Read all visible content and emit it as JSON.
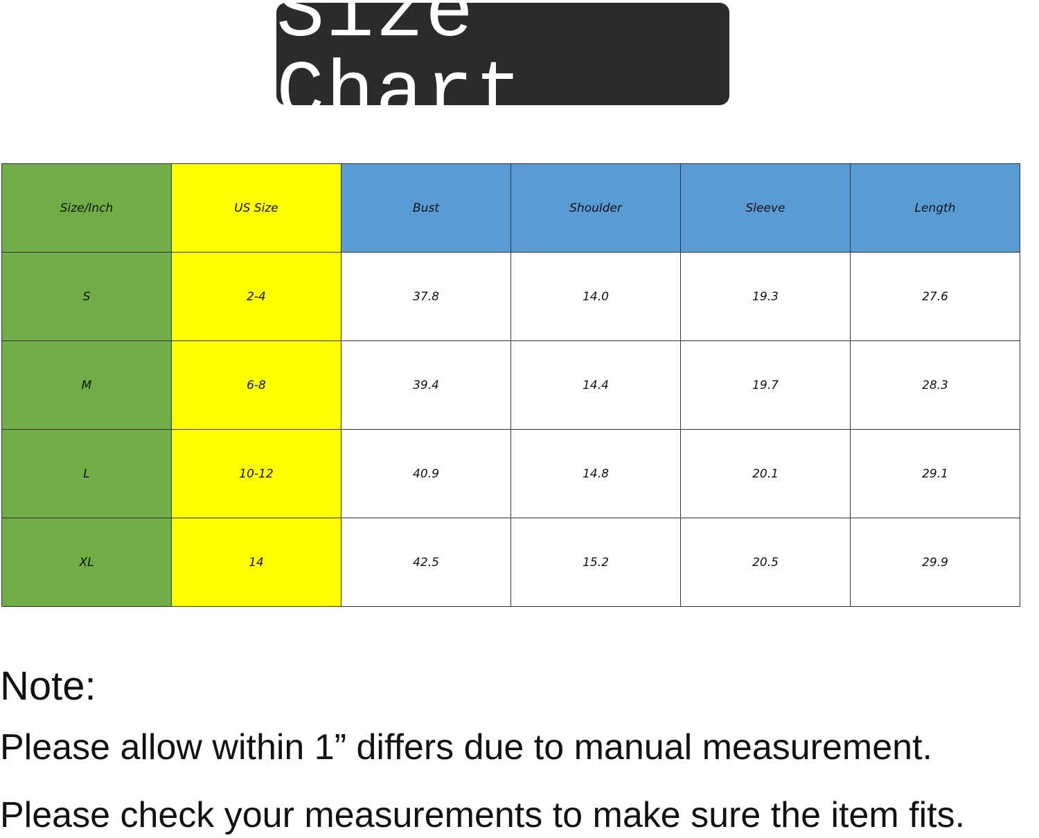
{
  "title": "Size Chart",
  "colors": {
    "size_column": "#70ad47",
    "us_size_column": "#ffff00",
    "measurement_header": "#5b9bd5",
    "title_background": "#2b2b2b"
  },
  "table": {
    "headers": [
      "Size/Inch",
      "US Size",
      "Bust",
      "Shoulder",
      "Sleeve",
      "Length"
    ],
    "rows": [
      [
        "S",
        "2-4",
        "37.8",
        "14.0",
        "19.3",
        "27.6"
      ],
      [
        "M",
        "6-8",
        "39.4",
        "14.4",
        "19.7",
        "28.3"
      ],
      [
        "L",
        "10-12",
        "40.9",
        "14.8",
        "20.1",
        "29.1"
      ],
      [
        "XL",
        "14",
        "42.5",
        "15.2",
        "20.5",
        "29.9"
      ]
    ]
  },
  "note": {
    "heading": "Note:",
    "lines": [
      "Please allow within 1” differs due to manual measurement.",
      "Please check your measurements to make sure the item fits."
    ]
  }
}
